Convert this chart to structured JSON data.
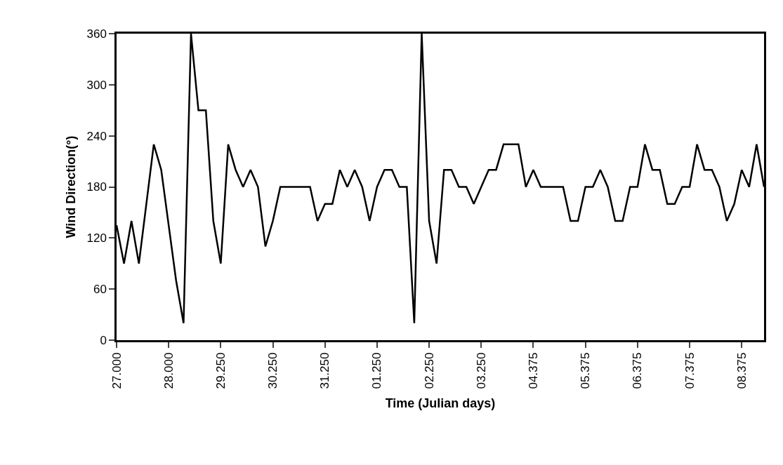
{
  "chart_data": {
    "type": "line",
    "xlabel": "Time (Julian days)",
    "ylabel": "Wind Direction(°)",
    "categories": [
      "27.000",
      null,
      null,
      null,
      null,
      null,
      null,
      "28.000",
      null,
      null,
      null,
      null,
      null,
      null,
      "29.250",
      null,
      null,
      null,
      null,
      null,
      null,
      "30.250",
      null,
      null,
      null,
      null,
      null,
      null,
      "31.250",
      null,
      null,
      null,
      null,
      null,
      null,
      "01.250",
      null,
      null,
      null,
      null,
      null,
      null,
      "02.250",
      null,
      null,
      null,
      null,
      null,
      null,
      "03.250",
      null,
      null,
      null,
      null,
      null,
      null,
      "04.375",
      null,
      null,
      null,
      null,
      null,
      null,
      "05.375",
      null,
      null,
      null,
      null,
      null,
      null,
      "06.375",
      null,
      null,
      null,
      null,
      null,
      null,
      "07.375",
      null,
      null,
      null,
      null,
      null,
      null,
      "08.375",
      null,
      null,
      null
    ],
    "series": [
      {
        "color": "#000000",
        "values": [
          135,
          90,
          140,
          90,
          160,
          230,
          200,
          135,
          70,
          20,
          360,
          270,
          270,
          140,
          90,
          230,
          200,
          180,
          200,
          180,
          110,
          140,
          180,
          180,
          180,
          180,
          180,
          140,
          160,
          160,
          200,
          180,
          200,
          180,
          140,
          180,
          200,
          200,
          180,
          180,
          20,
          360,
          140,
          90,
          200,
          200,
          180,
          180,
          160,
          180,
          200,
          200,
          230,
          230,
          230,
          180,
          200,
          180,
          180,
          180,
          180,
          140,
          140,
          180,
          180,
          200,
          180,
          140,
          140,
          180,
          180,
          230,
          200,
          200,
          160,
          160,
          180,
          180,
          230,
          200,
          200,
          180,
          140,
          160,
          200,
          180,
          230,
          180
        ]
      }
    ],
    "ylim": [
      0,
      360
    ],
    "yticks": [
      0,
      60,
      120,
      180,
      240,
      300,
      360
    ],
    "marker": "none",
    "line_style": "solid"
  }
}
